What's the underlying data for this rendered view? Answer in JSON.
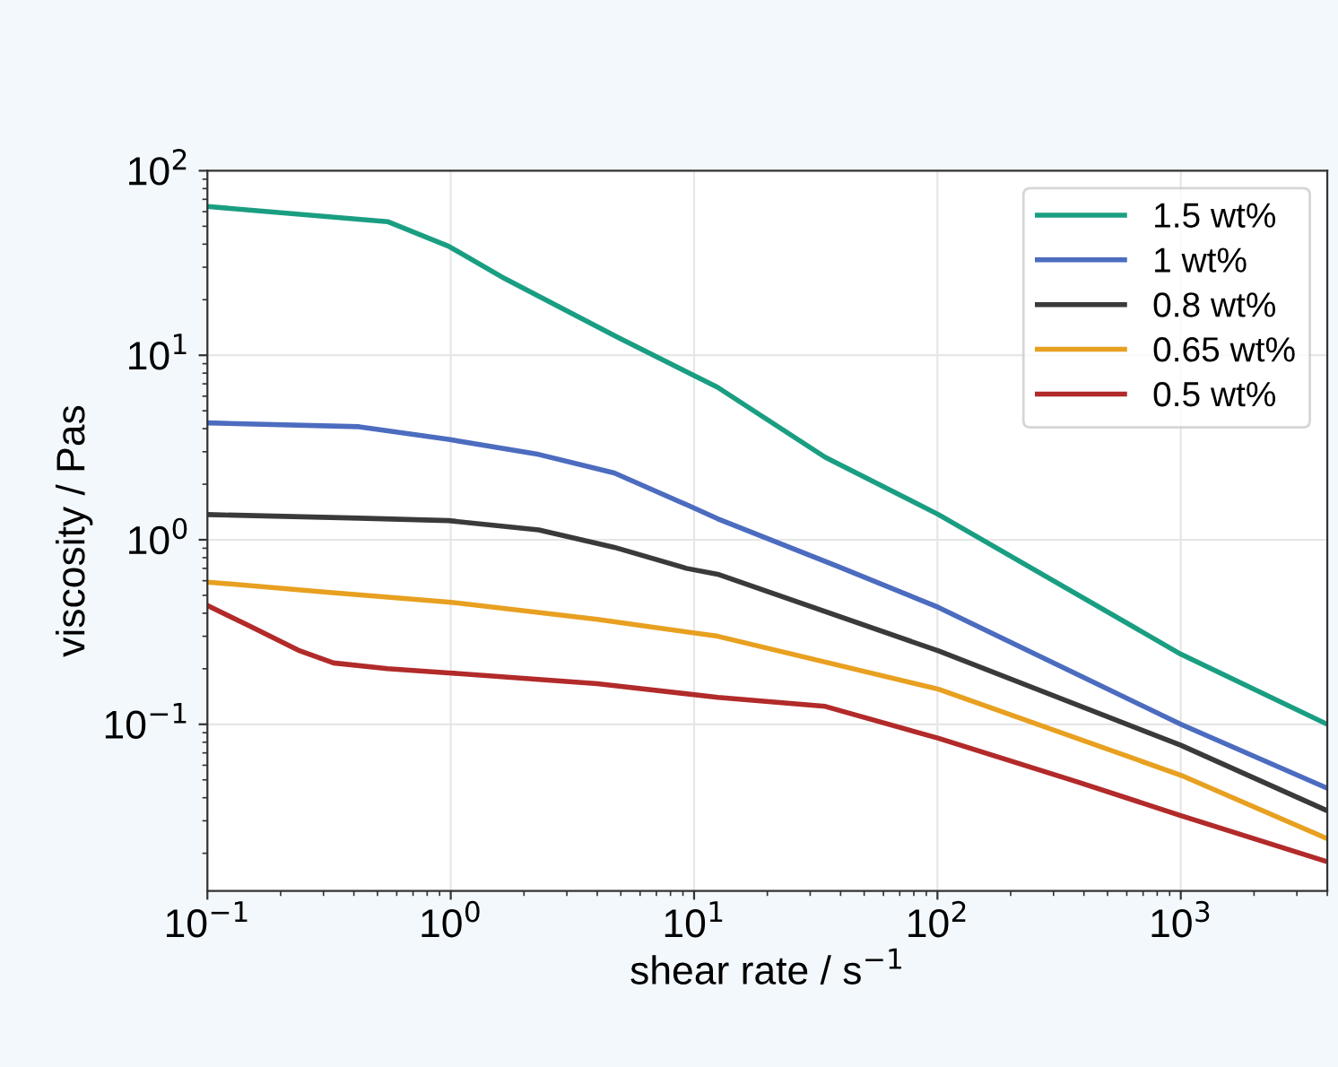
{
  "chart_data": {
    "type": "line",
    "xlabel": "shear rate / s$^{−1}$",
    "ylabel": "viscosity / Pas",
    "log": "xy",
    "grid": true,
    "legend": "top right",
    "line_style": "solid",
    "marker": "none",
    "xlim": [
      0.1,
      4000
    ],
    "ylim": [
      0.0125,
      100
    ],
    "xticks": [
      {
        "value": 0.1,
        "label": "10$^{−1}$"
      },
      {
        "value": 1,
        "label": "10$^{0}$"
      },
      {
        "value": 10,
        "label": "10$^{1}$"
      },
      {
        "value": 100,
        "label": "10$^{2}$"
      },
      {
        "value": 1000,
        "label": "10$^{3}$"
      }
    ],
    "yticks": [
      {
        "value": 0.1,
        "label": "10$^{−1}$"
      },
      {
        "value": 1,
        "label": "10$^{0}$"
      },
      {
        "value": 10,
        "label": "10$^{1}$"
      },
      {
        "value": 100,
        "label": "10$^{2}$"
      }
    ],
    "series": [
      {
        "name": "1.5 wt%",
        "color": "#1a9e82",
        "x": [
          0.1,
          0.55,
          0.98,
          1.67,
          4.8,
          12.5,
          34.6,
          101,
          1000,
          4000
        ],
        "values": [
          64,
          53,
          39,
          26,
          12.6,
          6.7,
          2.8,
          1.37,
          0.24,
          0.1
        ]
      },
      {
        "name": "1 wt%",
        "color": "#4c6cbf",
        "x": [
          0.1,
          0.42,
          0.98,
          2.3,
          4.7,
          9.3,
          12.5,
          38.7,
          101,
          1000,
          4000
        ],
        "values": [
          4.3,
          4.1,
          3.5,
          2.9,
          2.3,
          1.55,
          1.3,
          0.72,
          0.43,
          0.1,
          0.045
        ]
      },
      {
        "name": "0.8 wt%",
        "color": "#3a3a3a",
        "x": [
          0.1,
          0.42,
          0.98,
          2.3,
          4.7,
          9.3,
          12.5,
          101,
          1000,
          4000
        ],
        "values": [
          1.37,
          1.31,
          1.27,
          1.13,
          0.91,
          0.7,
          0.65,
          0.25,
          0.077,
          0.034
        ]
      },
      {
        "name": "0.65 wt%",
        "color": "#e8a020",
        "x": [
          0.1,
          0.31,
          0.98,
          4.0,
          12.5,
          101,
          1000,
          4000
        ],
        "values": [
          0.59,
          0.52,
          0.46,
          0.37,
          0.3,
          0.155,
          0.053,
          0.024
        ]
      },
      {
        "name": "0.5 wt%",
        "color": "#b22a2a",
        "x": [
          0.1,
          0.15,
          0.24,
          0.33,
          0.55,
          0.98,
          4.0,
          12.5,
          34.6,
          101,
          372,
          1000,
          4000
        ],
        "values": [
          0.44,
          0.34,
          0.25,
          0.215,
          0.2,
          0.19,
          0.166,
          0.14,
          0.125,
          0.084,
          0.049,
          0.032,
          0.018
        ]
      }
    ]
  }
}
